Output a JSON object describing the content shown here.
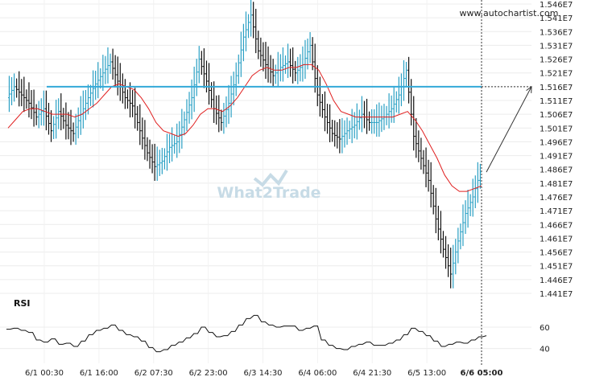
{
  "site": "www.autochartist.com",
  "watermark": "What2Trade",
  "rsi_title": "RSI",
  "colors": {
    "candle": "#2aa0c4",
    "candle_dark": "#111111",
    "ma": "#e02020",
    "level": "#33a9d8",
    "rsi": "#111111",
    "arrow": "#333333"
  },
  "chart_data": {
    "type": "line",
    "price_axis": {
      "ticks": [
        "1.546E7",
        "1.541E7",
        "1.536E7",
        "1.531E7",
        "1.526E7",
        "1.521E7",
        "1.516E7",
        "1.511E7",
        "1.506E7",
        "1.501E7",
        "1.496E7",
        "1.491E7",
        "1.486E7",
        "1.481E7",
        "1.476E7",
        "1.471E7",
        "1.466E7",
        "1.461E7",
        "1.456E7",
        "1.451E7",
        "1.446E7",
        "1.441E7"
      ],
      "ylim": [
        14410000,
        15460000
      ]
    },
    "time_axis": {
      "ticks": [
        "6/1 00:30",
        "6/1 16:00",
        "6/2 07:30",
        "6/2 23:00",
        "6/3 14:30",
        "6/4 06:00",
        "6/4 21:30",
        "6/5 13:00",
        "6/6 05:00"
      ]
    },
    "level": 15160000,
    "forecast": {
      "from": 14850000,
      "to": 15160000
    },
    "price": [
      15120000,
      15160000,
      15130000,
      15100000,
      15050000,
      15080000,
      15000000,
      15070000,
      15020000,
      14990000,
      15060000,
      15120000,
      15170000,
      15210000,
      15250000,
      15180000,
      15120000,
      15090000,
      15000000,
      14920000,
      14870000,
      14890000,
      14940000,
      14960000,
      15040000,
      15120000,
      15260000,
      15180000,
      15080000,
      15030000,
      15100000,
      15200000,
      15340000,
      15420000,
      15290000,
      15240000,
      15200000,
      15230000,
      15250000,
      15210000,
      15240000,
      15310000,
      15130000,
      15050000,
      14990000,
      14970000,
      15000000,
      15020000,
      15060000,
      15030000,
      15030000,
      15050000,
      15080000,
      15130000,
      15220000,
      14980000,
      14900000,
      14820000,
      14680000,
      14570000,
      14480000,
      14600000,
      14700000,
      14760000,
      14850000
    ],
    "moving_average": [
      15010000,
      15040000,
      15070000,
      15080000,
      15080000,
      15070000,
      15060000,
      15060000,
      15060000,
      15050000,
      15060000,
      15080000,
      15100000,
      15130000,
      15160000,
      15170000,
      15160000,
      15150000,
      15120000,
      15080000,
      15030000,
      15000000,
      14990000,
      14980000,
      14990000,
      15020000,
      15060000,
      15080000,
      15080000,
      15070000,
      15090000,
      15120000,
      15160000,
      15200000,
      15220000,
      15230000,
      15220000,
      15220000,
      15230000,
      15230000,
      15240000,
      15240000,
      15220000,
      15170000,
      15110000,
      15070000,
      15060000,
      15050000,
      15050000,
      15050000,
      15050000,
      15050000,
      15050000,
      15060000,
      15070000,
      15040000,
      15000000,
      14950000,
      14900000,
      14840000,
      14800000,
      14780000,
      14780000,
      14790000,
      14800000
    ],
    "rsi": {
      "ticks": [
        60,
        40
      ],
      "ylim": [
        30,
        75
      ],
      "values": [
        58,
        59,
        57,
        55,
        48,
        46,
        49,
        44,
        45,
        42,
        47,
        53,
        57,
        59,
        62,
        57,
        53,
        51,
        47,
        41,
        37,
        39,
        43,
        46,
        50,
        54,
        60,
        55,
        51,
        52,
        56,
        62,
        68,
        71,
        65,
        62,
        60,
        61,
        61,
        57,
        59,
        61,
        48,
        43,
        40,
        39,
        42,
        44,
        46,
        43,
        43,
        45,
        48,
        53,
        59,
        56,
        52,
        47,
        42,
        44,
        46,
        45,
        48,
        51,
        52
      ]
    }
  }
}
